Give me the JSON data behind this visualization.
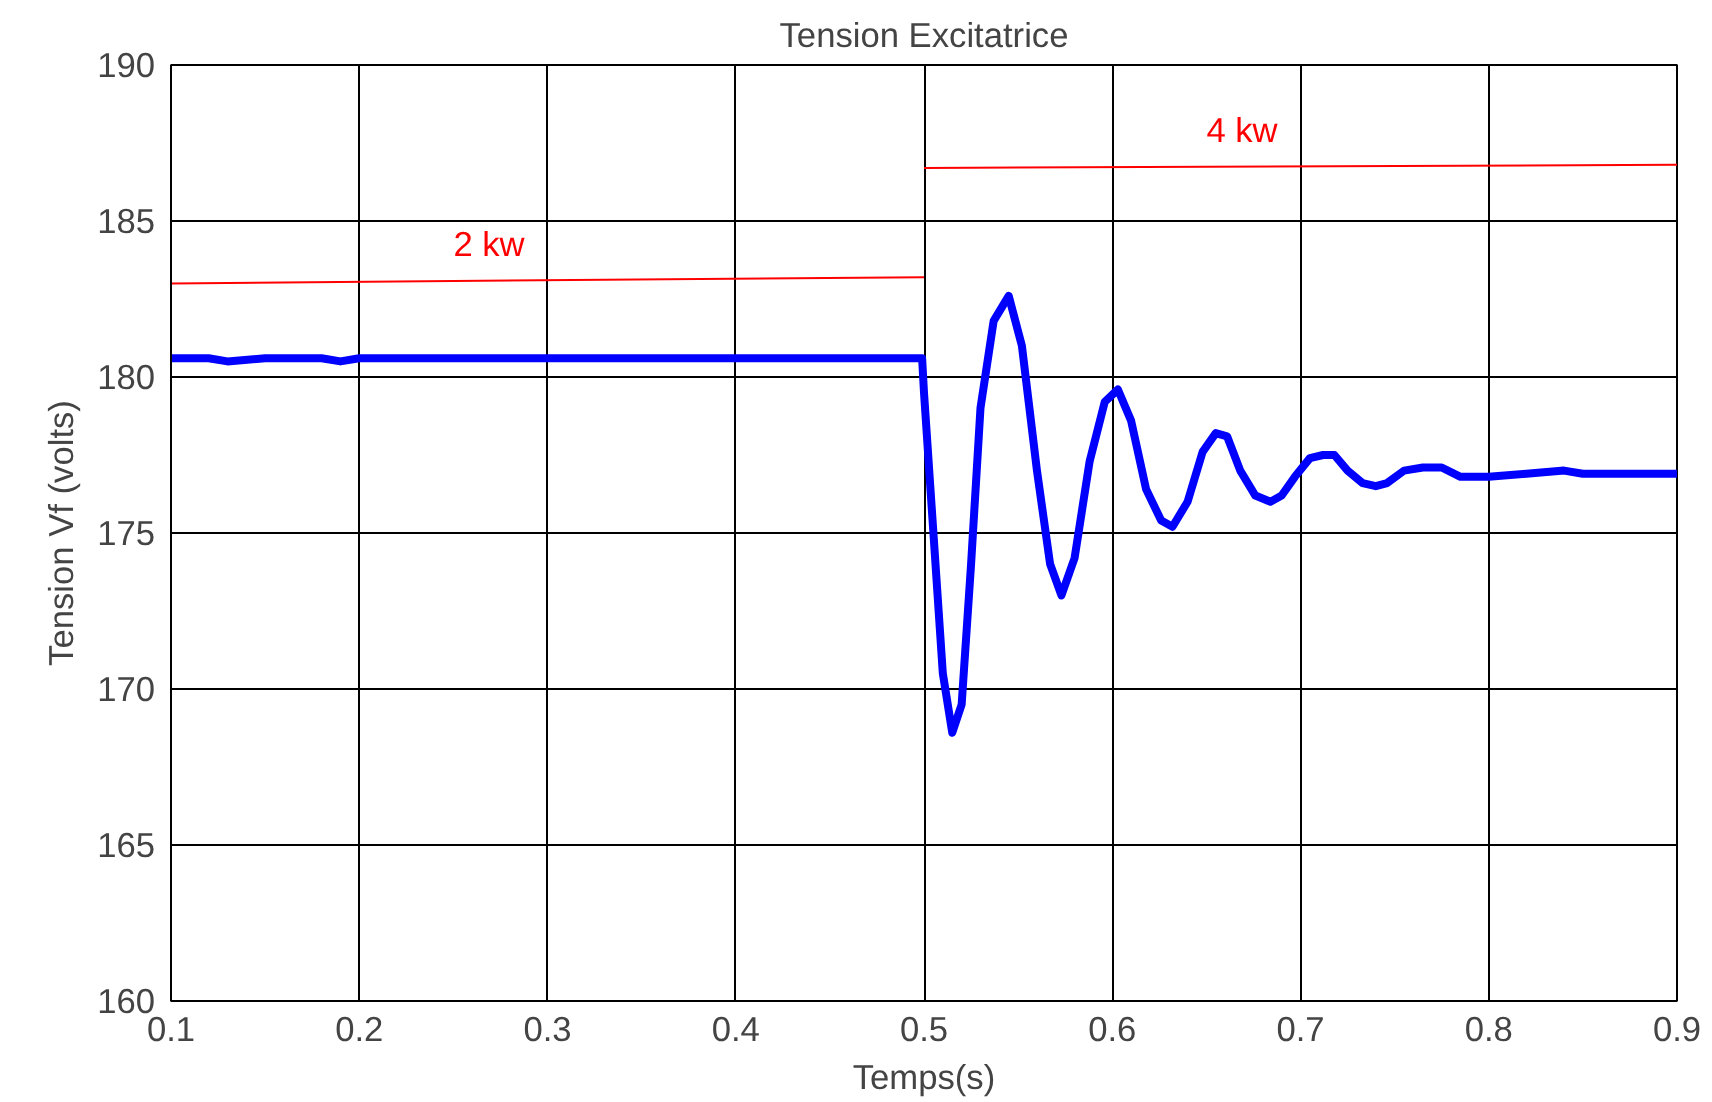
{
  "chart_data": {
    "type": "line",
    "title": "Tension Excitatrice",
    "xlabel": "Temps(s)",
    "ylabel": "Tension Vf (volts)",
    "xlim": [
      0.1,
      0.9
    ],
    "ylim": [
      160,
      190
    ],
    "xticks": [
      0.1,
      0.2,
      0.3,
      0.4,
      0.5,
      0.6,
      0.7,
      0.8,
      0.9
    ],
    "yticks": [
      160,
      165,
      170,
      175,
      180,
      185,
      190
    ],
    "grid": true,
    "line_style": "solid",
    "marker": "none",
    "series": [
      {
        "color": "#0000ff",
        "x": [
          0.1,
          0.12,
          0.13,
          0.15,
          0.18,
          0.19,
          0.2,
          0.3,
          0.4,
          0.499,
          0.5,
          0.505,
          0.51,
          0.515,
          0.52,
          0.525,
          0.53,
          0.537,
          0.545,
          0.552,
          0.56,
          0.567,
          0.573,
          0.58,
          0.588,
          0.596,
          0.603,
          0.61,
          0.618,
          0.626,
          0.632,
          0.64,
          0.648,
          0.655,
          0.661,
          0.668,
          0.676,
          0.684,
          0.69,
          0.697,
          0.705,
          0.712,
          0.718,
          0.725,
          0.733,
          0.74,
          0.746,
          0.755,
          0.765,
          0.775,
          0.785,
          0.8,
          0.82,
          0.84,
          0.85,
          0.87,
          0.9
        ],
        "values": [
          180.6,
          180.6,
          180.5,
          180.6,
          180.6,
          180.5,
          180.6,
          180.6,
          180.6,
          180.6,
          179.5,
          175,
          170.5,
          168.6,
          169.5,
          174,
          179,
          181.8,
          182.6,
          181,
          177,
          174,
          173,
          174.2,
          177.3,
          179.2,
          179.6,
          178.6,
          176.4,
          175.4,
          175.2,
          176,
          177.6,
          178.2,
          178.1,
          177,
          176.2,
          176,
          176.2,
          176.8,
          177.4,
          177.5,
          177.5,
          177,
          176.6,
          176.5,
          176.6,
          177,
          177.1,
          177.1,
          176.8,
          176.8,
          176.9,
          177,
          176.9,
          176.9,
          176.9
        ]
      },
      {
        "name": "2 kw",
        "color": "#ff0000",
        "x": [
          0.1,
          0.5
        ],
        "values": [
          183,
          183.2
        ]
      },
      {
        "name": "4 kw",
        "color": "#ff0000",
        "x": [
          0.5,
          0.9
        ],
        "values": [
          186.7,
          186.8
        ]
      }
    ]
  }
}
